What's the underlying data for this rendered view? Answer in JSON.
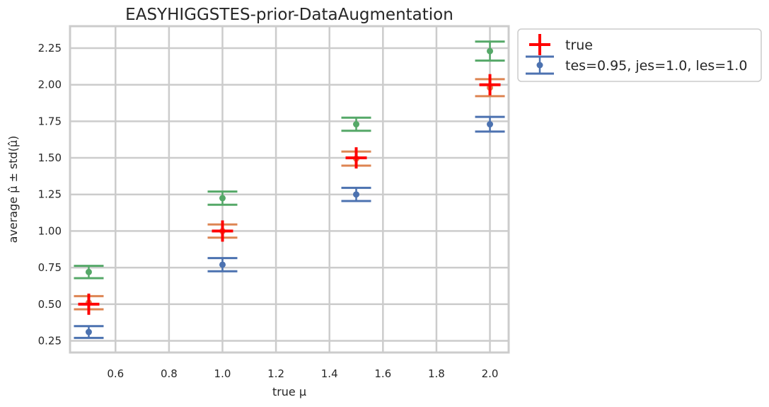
{
  "chart_data": {
    "type": "scatter",
    "title": "EASYHIGGSTES-prior-DataAugmentation",
    "xlabel": "true μ",
    "ylabel": "average μ̂ ± std(μ̂)",
    "xlim": [
      0.43,
      2.07
    ],
    "ylim": [
      0.17,
      2.4
    ],
    "xticks": [
      0.6,
      0.8,
      1.0,
      1.2,
      1.4,
      1.6,
      1.8,
      2.0
    ],
    "xtick_labels": [
      "0.6",
      "0.8",
      "1.0",
      "1.2",
      "1.4",
      "1.6",
      "1.8",
      "2.0"
    ],
    "yticks": [
      0.25,
      0.5,
      0.75,
      1.0,
      1.25,
      1.5,
      1.75,
      2.0,
      2.25
    ],
    "ytick_labels": [
      "0.25",
      "0.50",
      "0.75",
      "1.00",
      "1.25",
      "1.50",
      "1.75",
      "2.00",
      "2.25"
    ],
    "grid": true,
    "legend_position": "outside-top-right",
    "x": [
      0.5,
      1.0,
      1.5,
      2.0
    ],
    "series": [
      {
        "name": "true",
        "marker": "plus",
        "color": "#ff0000",
        "values": [
          0.5,
          1.0,
          1.5,
          2.0
        ]
      },
      {
        "name": "tes=0.95, jes=1.0, les=1.0",
        "marker": "errorbar",
        "color": "#4c72b0",
        "values": [
          0.31,
          0.77,
          1.25,
          1.73
        ],
        "errors": [
          0.04,
          0.045,
          0.045,
          0.05
        ]
      },
      {
        "marker": "errorbar",
        "color": "#dd8452",
        "values": [
          0.51,
          1.0,
          1.495,
          1.98
        ],
        "errors": [
          0.045,
          0.045,
          0.048,
          0.058
        ]
      },
      {
        "marker": "errorbar",
        "color": "#55a868",
        "values": [
          0.72,
          1.225,
          1.73,
          2.23
        ],
        "errors": [
          0.042,
          0.045,
          0.045,
          0.065
        ]
      }
    ]
  }
}
